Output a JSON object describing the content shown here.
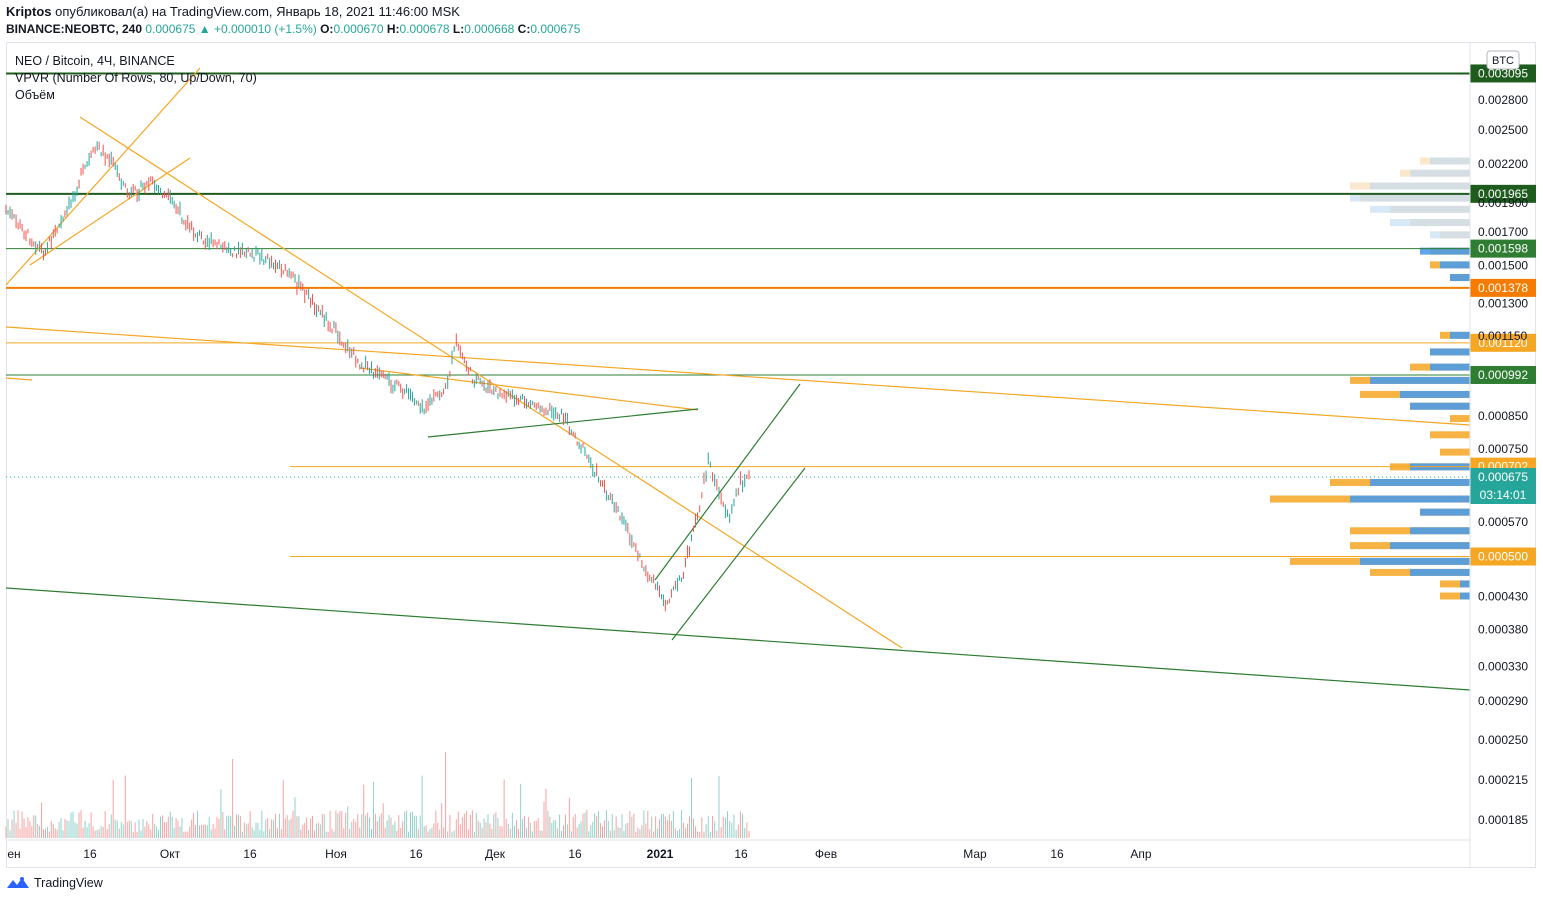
{
  "header": {
    "author": "Kriptos",
    "published_text": "опубликовал(а) на TradingView.com, Январь 18, 2021 11:46:00 MSK",
    "symbol_line": {
      "symbol": "BINANCE:NEOBTC, 240",
      "last": "0.000675",
      "change": "▲ +0.000010 (+1.5%)",
      "o_label": "O:",
      "o": "0.000670",
      "h_label": "H:",
      "h": "0.000678",
      "l_label": "L:",
      "l": "0.000668",
      "c_label": "C:",
      "c": "0.000675"
    }
  },
  "legend": {
    "title": "NEO / Bitcoin, 4Ч, BINANCE",
    "vpvr": "VPVR (Number Of Rows, 80, Up/Down, 70)",
    "volume": "Объём"
  },
  "currency_badge": "BTC",
  "footer": {
    "brand": "TradingView"
  },
  "chart_data": {
    "type": "candlestick",
    "price_axis": {
      "ticks": [
        "0.002800",
        "0.002500",
        "0.002200",
        "0.001900",
        "0.001700",
        "0.001500",
        "0.001300",
        "0.001150",
        "0.000850",
        "0.000750",
        "0.000570",
        "0.000430",
        "0.000380",
        "0.000330",
        "0.000290",
        "0.000250",
        "0.000215",
        "0.000185"
      ],
      "log_scale": true
    },
    "time_axis": {
      "ticks": [
        "ен",
        "16",
        "Окт",
        "16",
        "Ноя",
        "16",
        "Дек",
        "16",
        "2021",
        "16",
        "Фев",
        "Мар",
        "16",
        "Апр"
      ]
    },
    "horizontal_levels": [
      {
        "label": "0.003095",
        "value": 0.003095,
        "color": "#1e5c1e"
      },
      {
        "label": "0.001965",
        "value": 0.001965,
        "color": "#1e5c1e"
      },
      {
        "label": "0.001598",
        "value": 0.001598,
        "color": "#2e7d32"
      },
      {
        "label": "0.001378",
        "value": 0.001378,
        "color": "#f57c00"
      },
      {
        "label": "0.001120",
        "value": 0.00112,
        "color": "#f5a623"
      },
      {
        "label": "0.000992",
        "value": 0.000992,
        "color": "#2e7d32"
      },
      {
        "label": "0.000702",
        "value": 0.000702,
        "color": "#f5a623"
      },
      {
        "label": "0.000500",
        "value": 0.0005,
        "color": "#f5a623"
      }
    ],
    "last_price": {
      "label": "0.000675",
      "value": 0.000675,
      "countdown": "03:14:01",
      "color": "#26a69a"
    },
    "price_path": [
      [
        "2020-09-01",
        0.00185
      ],
      [
        "2020-09-04",
        0.00172
      ],
      [
        "2020-09-08",
        0.00158
      ],
      [
        "2020-09-12",
        0.0018
      ],
      [
        "2020-09-15",
        0.0021
      ],
      [
        "2020-09-18",
        0.00235
      ],
      [
        "2020-09-21",
        0.0022
      ],
      [
        "2020-09-24",
        0.00195
      ],
      [
        "2020-09-28",
        0.00205
      ],
      [
        "2020-10-02",
        0.0019
      ],
      [
        "2020-10-06",
        0.0017
      ],
      [
        "2020-10-10",
        0.00162
      ],
      [
        "2020-10-14",
        0.00158
      ],
      [
        "2020-10-18",
        0.00156
      ],
      [
        "2020-10-22",
        0.0015
      ],
      [
        "2020-10-26",
        0.00138
      ],
      [
        "2020-10-30",
        0.00125
      ],
      [
        "2020-11-03",
        0.00112
      ],
      [
        "2020-11-06",
        0.00104
      ],
      [
        "2020-11-10",
        0.00098
      ],
      [
        "2020-11-14",
        0.00094
      ],
      [
        "2020-11-18",
        0.00088
      ],
      [
        "2020-11-22",
        0.00094
      ],
      [
        "2020-11-24",
        0.00112
      ],
      [
        "2020-11-27",
        0.00098
      ],
      [
        "2020-12-01",
        0.00093
      ],
      [
        "2020-12-06",
        0.0009
      ],
      [
        "2020-12-10",
        0.00088
      ],
      [
        "2020-12-14",
        0.00085
      ],
      [
        "2020-12-18",
        0.00074
      ],
      [
        "2020-12-22",
        0.00064
      ],
      [
        "2020-12-26",
        0.00055
      ],
      [
        "2020-12-29",
        0.00048
      ],
      [
        "2021-01-02",
        0.00042
      ],
      [
        "2021-01-05",
        0.00046
      ],
      [
        "2021-01-08",
        0.00058
      ],
      [
        "2021-01-10",
        0.00072
      ],
      [
        "2021-01-12",
        0.00063
      ],
      [
        "2021-01-14",
        0.00058
      ],
      [
        "2021-01-16",
        0.00066
      ],
      [
        "2021-01-18",
        0.000675
      ]
    ],
    "vpvr": {
      "rows": [
        {
          "price": 0.00222,
          "up": 5e-05,
          "down": 4e-05
        },
        {
          "price": 0.00212,
          "up": 7e-05,
          "down": 6e-05
        },
        {
          "price": 0.00202,
          "up": 0.00012,
          "down": 0.0001
        },
        {
          "price": 0.00193,
          "up": 0.00011,
          "down": 0.00012
        },
        {
          "price": 0.00185,
          "up": 8e-05,
          "down": 0.0001
        },
        {
          "price": 0.00176,
          "up": 6e-05,
          "down": 8e-05
        },
        {
          "price": 0.00168,
          "up": 3e-05,
          "down": 4e-05
        },
        {
          "price": 0.00158,
          "up": 4e-05,
          "down": 5e-05
        },
        {
          "price": 0.0015,
          "up": 4e-05,
          "down": 3e-05
        },
        {
          "price": 0.00143,
          "up": 2e-05,
          "down": 2e-05
        },
        {
          "price": 0.00115,
          "up": 3e-05,
          "down": 2e-05
        },
        {
          "price": 0.00108,
          "up": 4e-05,
          "down": 4e-05
        },
        {
          "price": 0.00102,
          "up": 6e-05,
          "down": 4e-05
        },
        {
          "price": 0.00097,
          "up": 0.00012,
          "down": 0.0001
        },
        {
          "price": 0.00092,
          "up": 0.00011,
          "down": 7e-05
        },
        {
          "price": 0.00088,
          "up": 6e-05,
          "down": 6e-05
        },
        {
          "price": 0.00084,
          "up": 2e-05,
          "down": 0.0
        },
        {
          "price": 0.00079,
          "up": 4e-05,
          "down": 0.0
        },
        {
          "price": 0.00074,
          "up": 3e-05,
          "down": 0.0
        },
        {
          "price": 0.0007,
          "up": 8e-05,
          "down": 6e-05
        },
        {
          "price": 0.00066,
          "up": 0.00014,
          "down": 0.0001
        },
        {
          "price": 0.00062,
          "up": 0.0002,
          "down": 0.00012
        },
        {
          "price": 0.00059,
          "up": 5e-05,
          "down": 5e-05
        },
        {
          "price": 0.00055,
          "up": 0.00012,
          "down": 6e-05
        },
        {
          "price": 0.00052,
          "up": 0.00012,
          "down": 8e-05
        },
        {
          "price": 0.00049,
          "up": 0.00018,
          "down": 0.00011
        },
        {
          "price": 0.00047,
          "up": 0.0001,
          "down": 6e-05
        },
        {
          "price": 0.00045,
          "up": 3e-05,
          "down": 1e-05
        },
        {
          "price": 0.00043,
          "up": 3e-05,
          "down": 1e-05
        }
      ]
    }
  }
}
